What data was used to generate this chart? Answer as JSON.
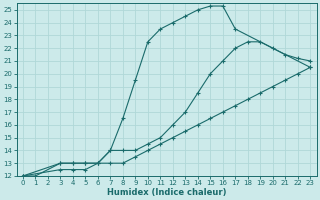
{
  "xlabel": "Humidex (Indice chaleur)",
  "bg_color": "#cceaea",
  "grid_color": "#b0d8d8",
  "line_color": "#1a6b6b",
  "xlim": [
    -0.5,
    23.5
  ],
  "ylim": [
    12,
    25.5
  ],
  "xticks": [
    0,
    1,
    2,
    3,
    4,
    5,
    6,
    7,
    8,
    9,
    10,
    11,
    12,
    13,
    14,
    15,
    16,
    17,
    18,
    19,
    20,
    21,
    22,
    23
  ],
  "yticks": [
    12,
    13,
    14,
    15,
    16,
    17,
    18,
    19,
    20,
    21,
    22,
    23,
    24,
    25
  ],
  "line1_x": [
    0,
    1,
    3,
    4,
    5,
    6,
    7,
    8,
    9,
    10,
    11,
    12,
    13,
    14,
    15,
    16,
    17,
    23
  ],
  "line1_y": [
    12,
    12,
    13,
    13,
    13,
    13,
    14,
    16.5,
    19.5,
    22.5,
    23.5,
    24,
    24.5,
    25,
    25.3,
    25.3,
    23.5,
    20.5
  ],
  "line2_x": [
    0,
    3,
    4,
    5,
    6,
    7,
    8,
    9,
    10,
    11,
    12,
    13,
    14,
    15,
    16,
    17,
    18,
    19,
    20,
    21,
    22,
    23
  ],
  "line2_y": [
    12,
    13,
    13,
    13,
    13,
    14,
    14,
    14,
    14.5,
    15,
    16,
    17,
    18.5,
    20,
    21,
    22,
    22.5,
    22.5,
    22,
    21.5,
    21.2,
    21
  ],
  "line3_x": [
    0,
    3,
    4,
    5,
    6,
    7,
    8,
    9,
    10,
    11,
    12,
    13,
    14,
    15,
    16,
    17,
    18,
    19,
    20,
    21,
    22,
    23
  ],
  "line3_y": [
    12,
    12.5,
    12.5,
    12.5,
    13,
    13,
    13,
    13.5,
    14,
    14.5,
    15,
    15.5,
    16,
    16.5,
    17,
    17.5,
    18,
    18.5,
    19,
    19.5,
    20,
    20.5
  ]
}
